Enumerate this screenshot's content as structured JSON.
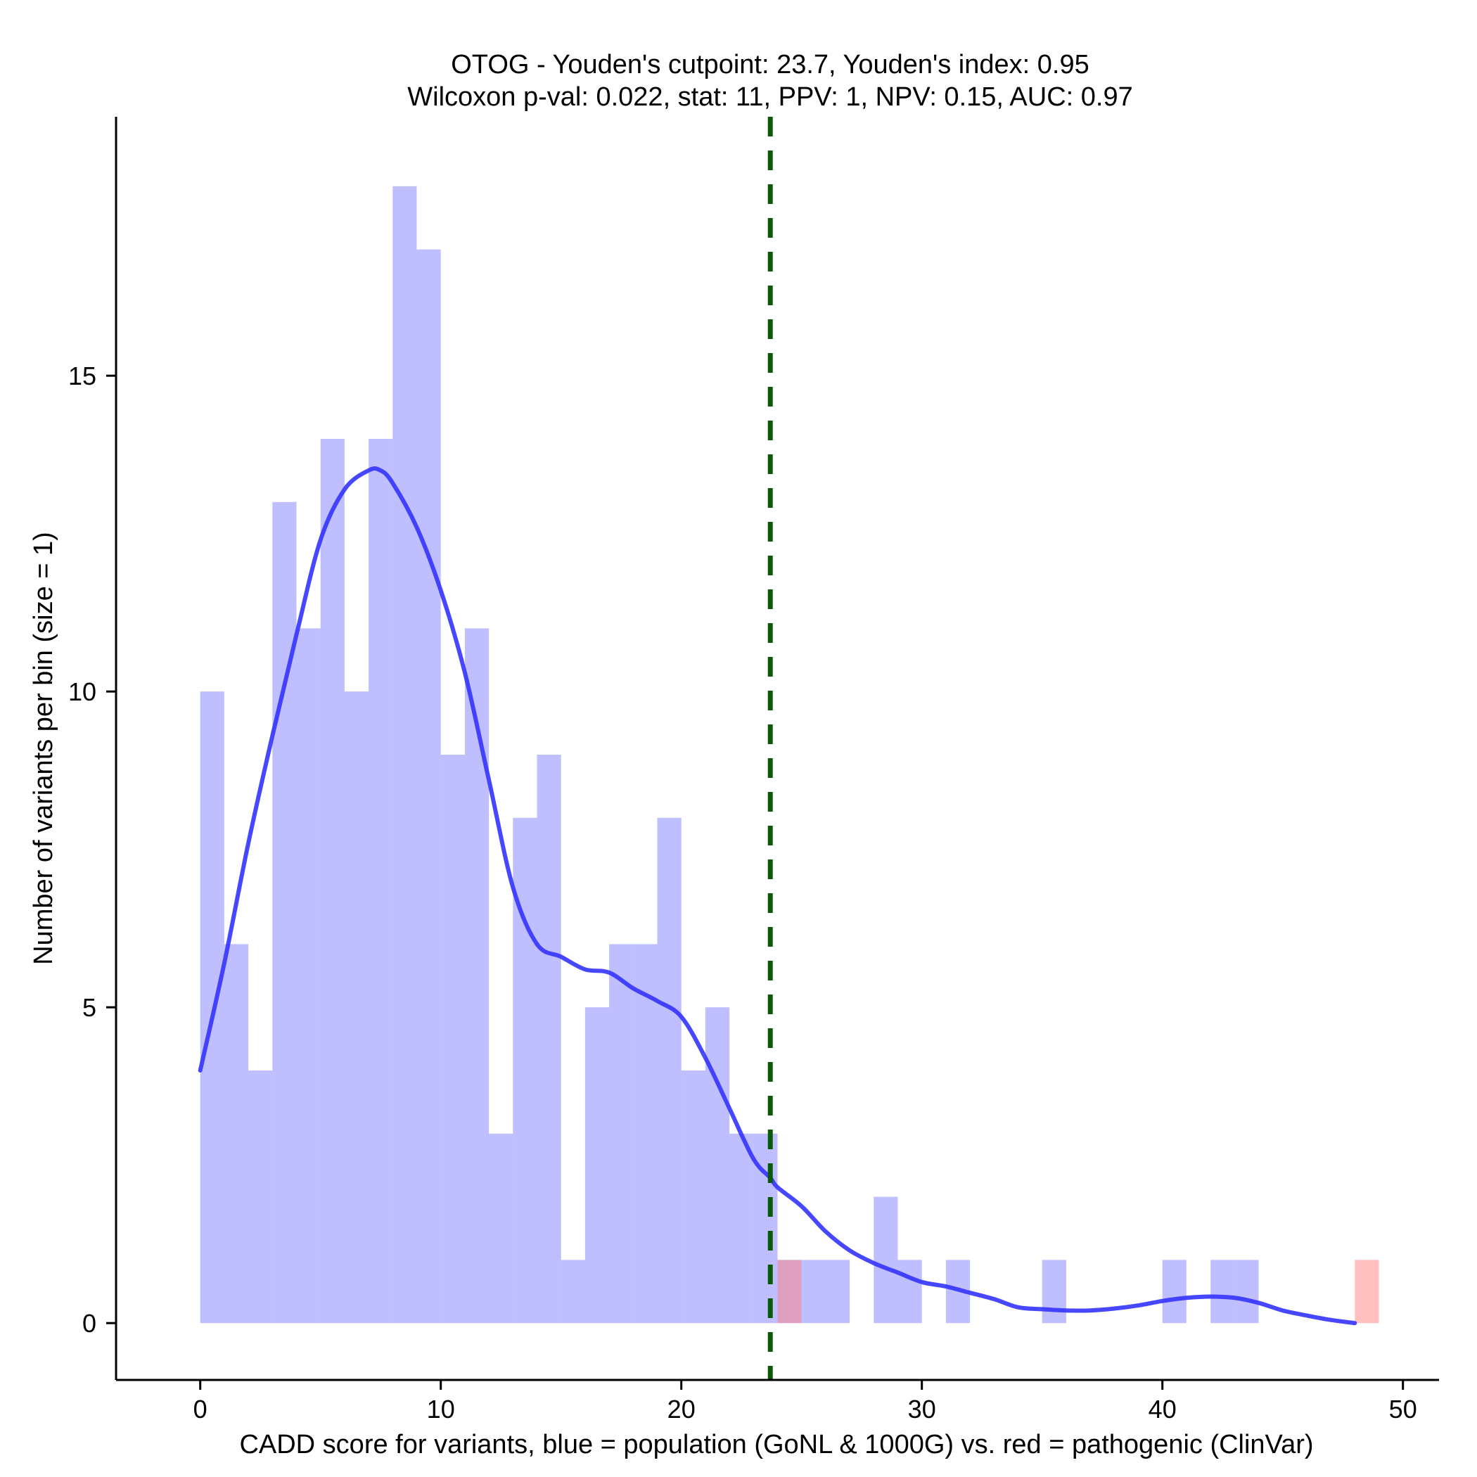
{
  "chart_data": {
    "type": "histogram",
    "title": "OTOG - Youden's cutpoint: 23.7, Youden's index: 0.95",
    "subtitle": "Wilcoxon p-val: 0.022, stat: 11, PPV: 1, NPV: 0.15, AUC: 0.97",
    "xlabel": "CADD score for variants, blue = population (GoNL & 1000G) vs. red = pathogenic (ClinVar)",
    "ylabel": "Number of variants per bin (size = 1)",
    "xlim": [
      -3.5,
      51.5
    ],
    "ylim": [
      -0.9,
      19.1
    ],
    "x_ticks": [
      0,
      10,
      20,
      30,
      40,
      50
    ],
    "y_ticks": [
      0,
      5,
      10,
      15
    ],
    "bin_size": 1,
    "cutpoint": 23.7,
    "colors": {
      "population": "#8080ff",
      "pathogenic": "#ff8080",
      "density": "#3333ff",
      "cutpoint": "#0b5a0b"
    },
    "series": [
      {
        "name": "population",
        "bins": [
          {
            "x": 0,
            "count": 10
          },
          {
            "x": 1,
            "count": 6
          },
          {
            "x": 2,
            "count": 4
          },
          {
            "x": 3,
            "count": 13
          },
          {
            "x": 4,
            "count": 11
          },
          {
            "x": 5,
            "count": 14
          },
          {
            "x": 6,
            "count": 10
          },
          {
            "x": 7,
            "count": 14
          },
          {
            "x": 8,
            "count": 18
          },
          {
            "x": 9,
            "count": 17
          },
          {
            "x": 10,
            "count": 9
          },
          {
            "x": 11,
            "count": 11
          },
          {
            "x": 12,
            "count": 3
          },
          {
            "x": 13,
            "count": 8
          },
          {
            "x": 14,
            "count": 9
          },
          {
            "x": 15,
            "count": 1
          },
          {
            "x": 16,
            "count": 5
          },
          {
            "x": 17,
            "count": 6
          },
          {
            "x": 18,
            "count": 6
          },
          {
            "x": 19,
            "count": 8
          },
          {
            "x": 20,
            "count": 4
          },
          {
            "x": 21,
            "count": 5
          },
          {
            "x": 22,
            "count": 3
          },
          {
            "x": 23,
            "count": 3
          },
          {
            "x": 24,
            "count": 1
          },
          {
            "x": 25,
            "count": 1
          },
          {
            "x": 26,
            "count": 1
          },
          {
            "x": 28,
            "count": 2
          },
          {
            "x": 29,
            "count": 1
          },
          {
            "x": 31,
            "count": 1
          },
          {
            "x": 35,
            "count": 1
          },
          {
            "x": 40,
            "count": 1
          },
          {
            "x": 42,
            "count": 1
          },
          {
            "x": 43,
            "count": 1
          }
        ]
      },
      {
        "name": "pathogenic",
        "bins": [
          {
            "x": 24,
            "count": 1
          },
          {
            "x": 48,
            "count": 1
          }
        ]
      }
    ],
    "density": {
      "name": "population density",
      "x": [
        0,
        1,
        2,
        3,
        4,
        5,
        6,
        7,
        7.5,
        8,
        9,
        10,
        11,
        12,
        13,
        14,
        15,
        16,
        17,
        18,
        19,
        20,
        21,
        22,
        23,
        23.7,
        24,
        25,
        26,
        27,
        28,
        29,
        30,
        31,
        32,
        33,
        34,
        35,
        36,
        37,
        38,
        39,
        40,
        41,
        42,
        43,
        44,
        45,
        46,
        47,
        48
      ],
      "y": [
        4,
        5.7,
        7.6,
        9.3,
        10.9,
        12.4,
        13.2,
        13.5,
        13.5,
        13.3,
        12.6,
        11.6,
        10.3,
        8.6,
        6.9,
        6,
        5.8,
        5.6,
        5.55,
        5.3,
        5.1,
        4.85,
        4.2,
        3.4,
        2.6,
        2.3,
        2.15,
        1.85,
        1.45,
        1.15,
        0.95,
        0.8,
        0.65,
        0.58,
        0.48,
        0.38,
        0.25,
        0.22,
        0.2,
        0.2,
        0.23,
        0.28,
        0.35,
        0.4,
        0.42,
        0.4,
        0.32,
        0.2,
        0.12,
        0.05,
        0
      ]
    }
  }
}
